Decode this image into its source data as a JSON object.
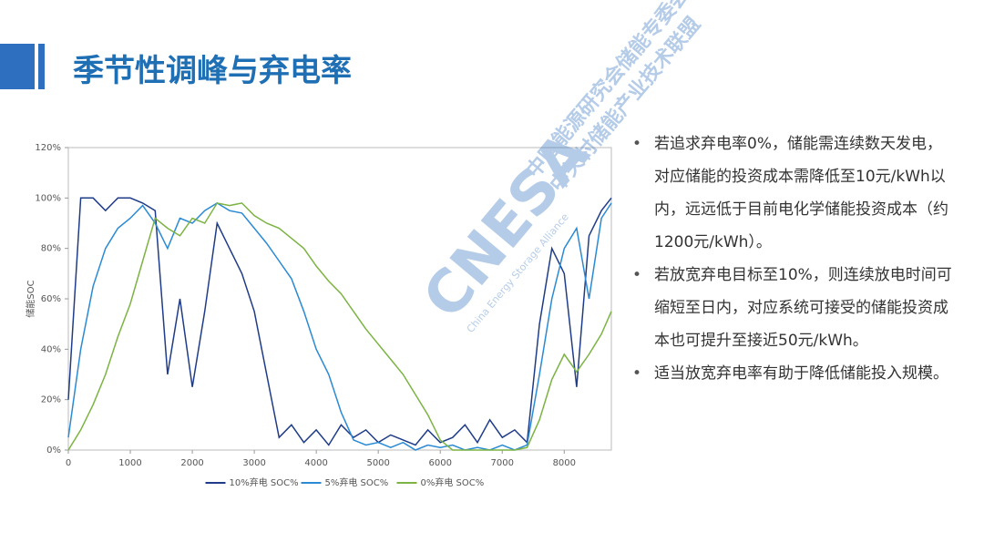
{
  "header": {
    "title": "季节性调峰与弃电率"
  },
  "bullets": [
    "若追求弃电率0%，储能需连续数天发电，对应储能的投资成本需降低至10元/kWh以内，远远低于目前电化学储能投资成本（约1200元/kWh）。",
    "若放宽弃电目标至10%，则连续放电时间可缩短至日内，对应系统可接受的储能投资成本也可提升至接近50元/kWh。",
    "适当放宽弃电率有助于降低储能投入规模。"
  ],
  "watermark": {
    "line1": "中国能源研究会储能专委会",
    "line2": "中关村储能产业技术联盟",
    "logo": "CNESA",
    "tagline": "China Energy Storage Alliance"
  },
  "chart_data": {
    "type": "line",
    "y_label": "储能SOC",
    "legend": "bottom",
    "grid": false,
    "x": [
      0,
      200,
      400,
      600,
      800,
      1000,
      1200,
      1400,
      1600,
      1800,
      2000,
      2200,
      2400,
      2600,
      2800,
      3000,
      3200,
      3400,
      3600,
      3800,
      4000,
      4200,
      4400,
      4600,
      4800,
      5000,
      5200,
      5400,
      5600,
      5800,
      6000,
      6200,
      6400,
      6600,
      6800,
      7000,
      7200,
      7400,
      7600,
      7800,
      8000,
      8200,
      8400,
      8600,
      8760
    ],
    "xlim": [
      0,
      8760
    ],
    "xticks": [
      0,
      1000,
      2000,
      3000,
      4000,
      5000,
      6000,
      7000,
      8000
    ],
    "ylim": [
      0,
      120
    ],
    "yticks": [
      {
        "value": 0,
        "label": "0%"
      },
      {
        "value": 20,
        "label": "20%"
      },
      {
        "value": 40,
        "label": "40%"
      },
      {
        "value": 60,
        "label": "60%"
      },
      {
        "value": 80,
        "label": "80%"
      },
      {
        "value": 100,
        "label": "100%"
      },
      {
        "value": 120,
        "label": "120%"
      }
    ],
    "series": [
      {
        "name": "10%弃电 SOC%",
        "color": "#1f3c88",
        "values": [
          20,
          100,
          100,
          95,
          100,
          100,
          98,
          95,
          30,
          60,
          25,
          55,
          90,
          80,
          70,
          55,
          30,
          5,
          10,
          3,
          8,
          2,
          10,
          5,
          8,
          3,
          6,
          4,
          2,
          8,
          3,
          5,
          10,
          3,
          12,
          5,
          8,
          3,
          50,
          80,
          70,
          25,
          85,
          95,
          100
        ]
      },
      {
        "name": "5%弃电 SOC%",
        "color": "#2a8ad4",
        "values": [
          5,
          40,
          65,
          80,
          88,
          92,
          97,
          90,
          80,
          92,
          90,
          95,
          98,
          95,
          94,
          88,
          82,
          75,
          68,
          55,
          40,
          30,
          15,
          4,
          2,
          3,
          1,
          3,
          0,
          2,
          1,
          2,
          0,
          1,
          0,
          2,
          0,
          2,
          30,
          60,
          80,
          88,
          60,
          92,
          98
        ]
      },
      {
        "name": "0%弃电 SOC%",
        "color": "#7cb342",
        "values": [
          0,
          8,
          18,
          30,
          45,
          58,
          75,
          92,
          88,
          85,
          92,
          90,
          98,
          97,
          98,
          93,
          90,
          88,
          84,
          80,
          73,
          67,
          62,
          55,
          48,
          42,
          36,
          30,
          22,
          14,
          4,
          0,
          0,
          0,
          0,
          0,
          0,
          1,
          12,
          28,
          38,
          31,
          38,
          46,
          55
        ]
      }
    ]
  }
}
